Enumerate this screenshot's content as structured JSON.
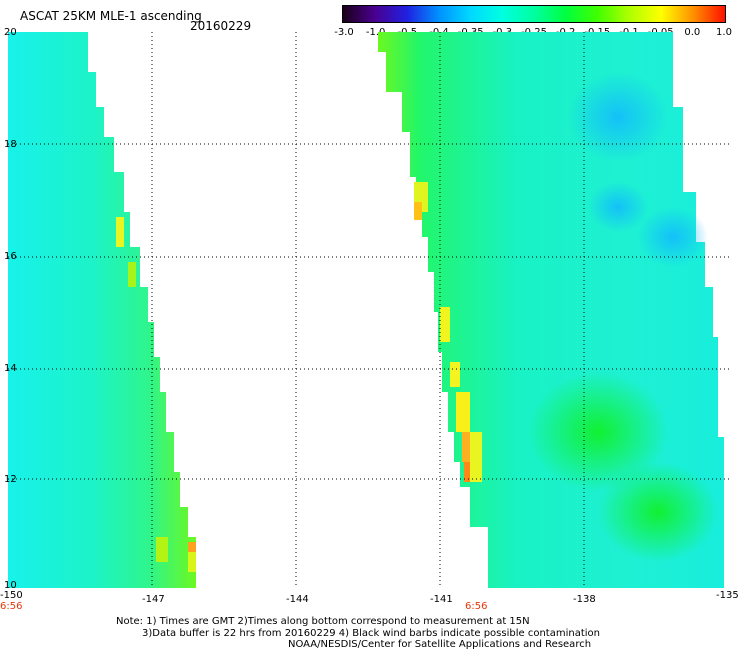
{
  "header": {
    "title": "ASCAT 25KM MLE-1 ascending",
    "date": "20160229"
  },
  "colorbar": {
    "labels": [
      "-3.0",
      "-1.0",
      "-0.5",
      "-0.4",
      "-0.35",
      "-0.3",
      "-0.25",
      "-0.2",
      "-0.15",
      "-0.1",
      "-0.05",
      "0.0",
      "1.0"
    ],
    "colors": [
      "#1a0018",
      "#4a0090",
      "#2020e0",
      "#0090ff",
      "#00d8ff",
      "#00ffe0",
      "#00ffa0",
      "#00ff40",
      "#40ff00",
      "#b0ff00",
      "#ffff00",
      "#ff9000",
      "#ff1000"
    ]
  },
  "map": {
    "lat_ticks": [
      "20",
      "18",
      "16",
      "14",
      "12",
      "10"
    ],
    "lon_ticks": [
      "-150",
      "-147",
      "-144",
      "-141",
      "-138",
      "-135"
    ],
    "time_labels": [
      "6:56",
      "6:56"
    ],
    "swaths": [
      {
        "name": "left-swath"
      },
      {
        "name": "right-swath"
      }
    ]
  },
  "notes": {
    "line1": "Note: 1) Times are GMT 2)Times along bottom correspond to measurement at 15N",
    "line2": "3)Data buffer is 22 hrs from 20160229 4) Black wind barbs indicate possible contamination",
    "line3": "NOAA/NESDIS/Center for Satellite Applications and Research"
  }
}
